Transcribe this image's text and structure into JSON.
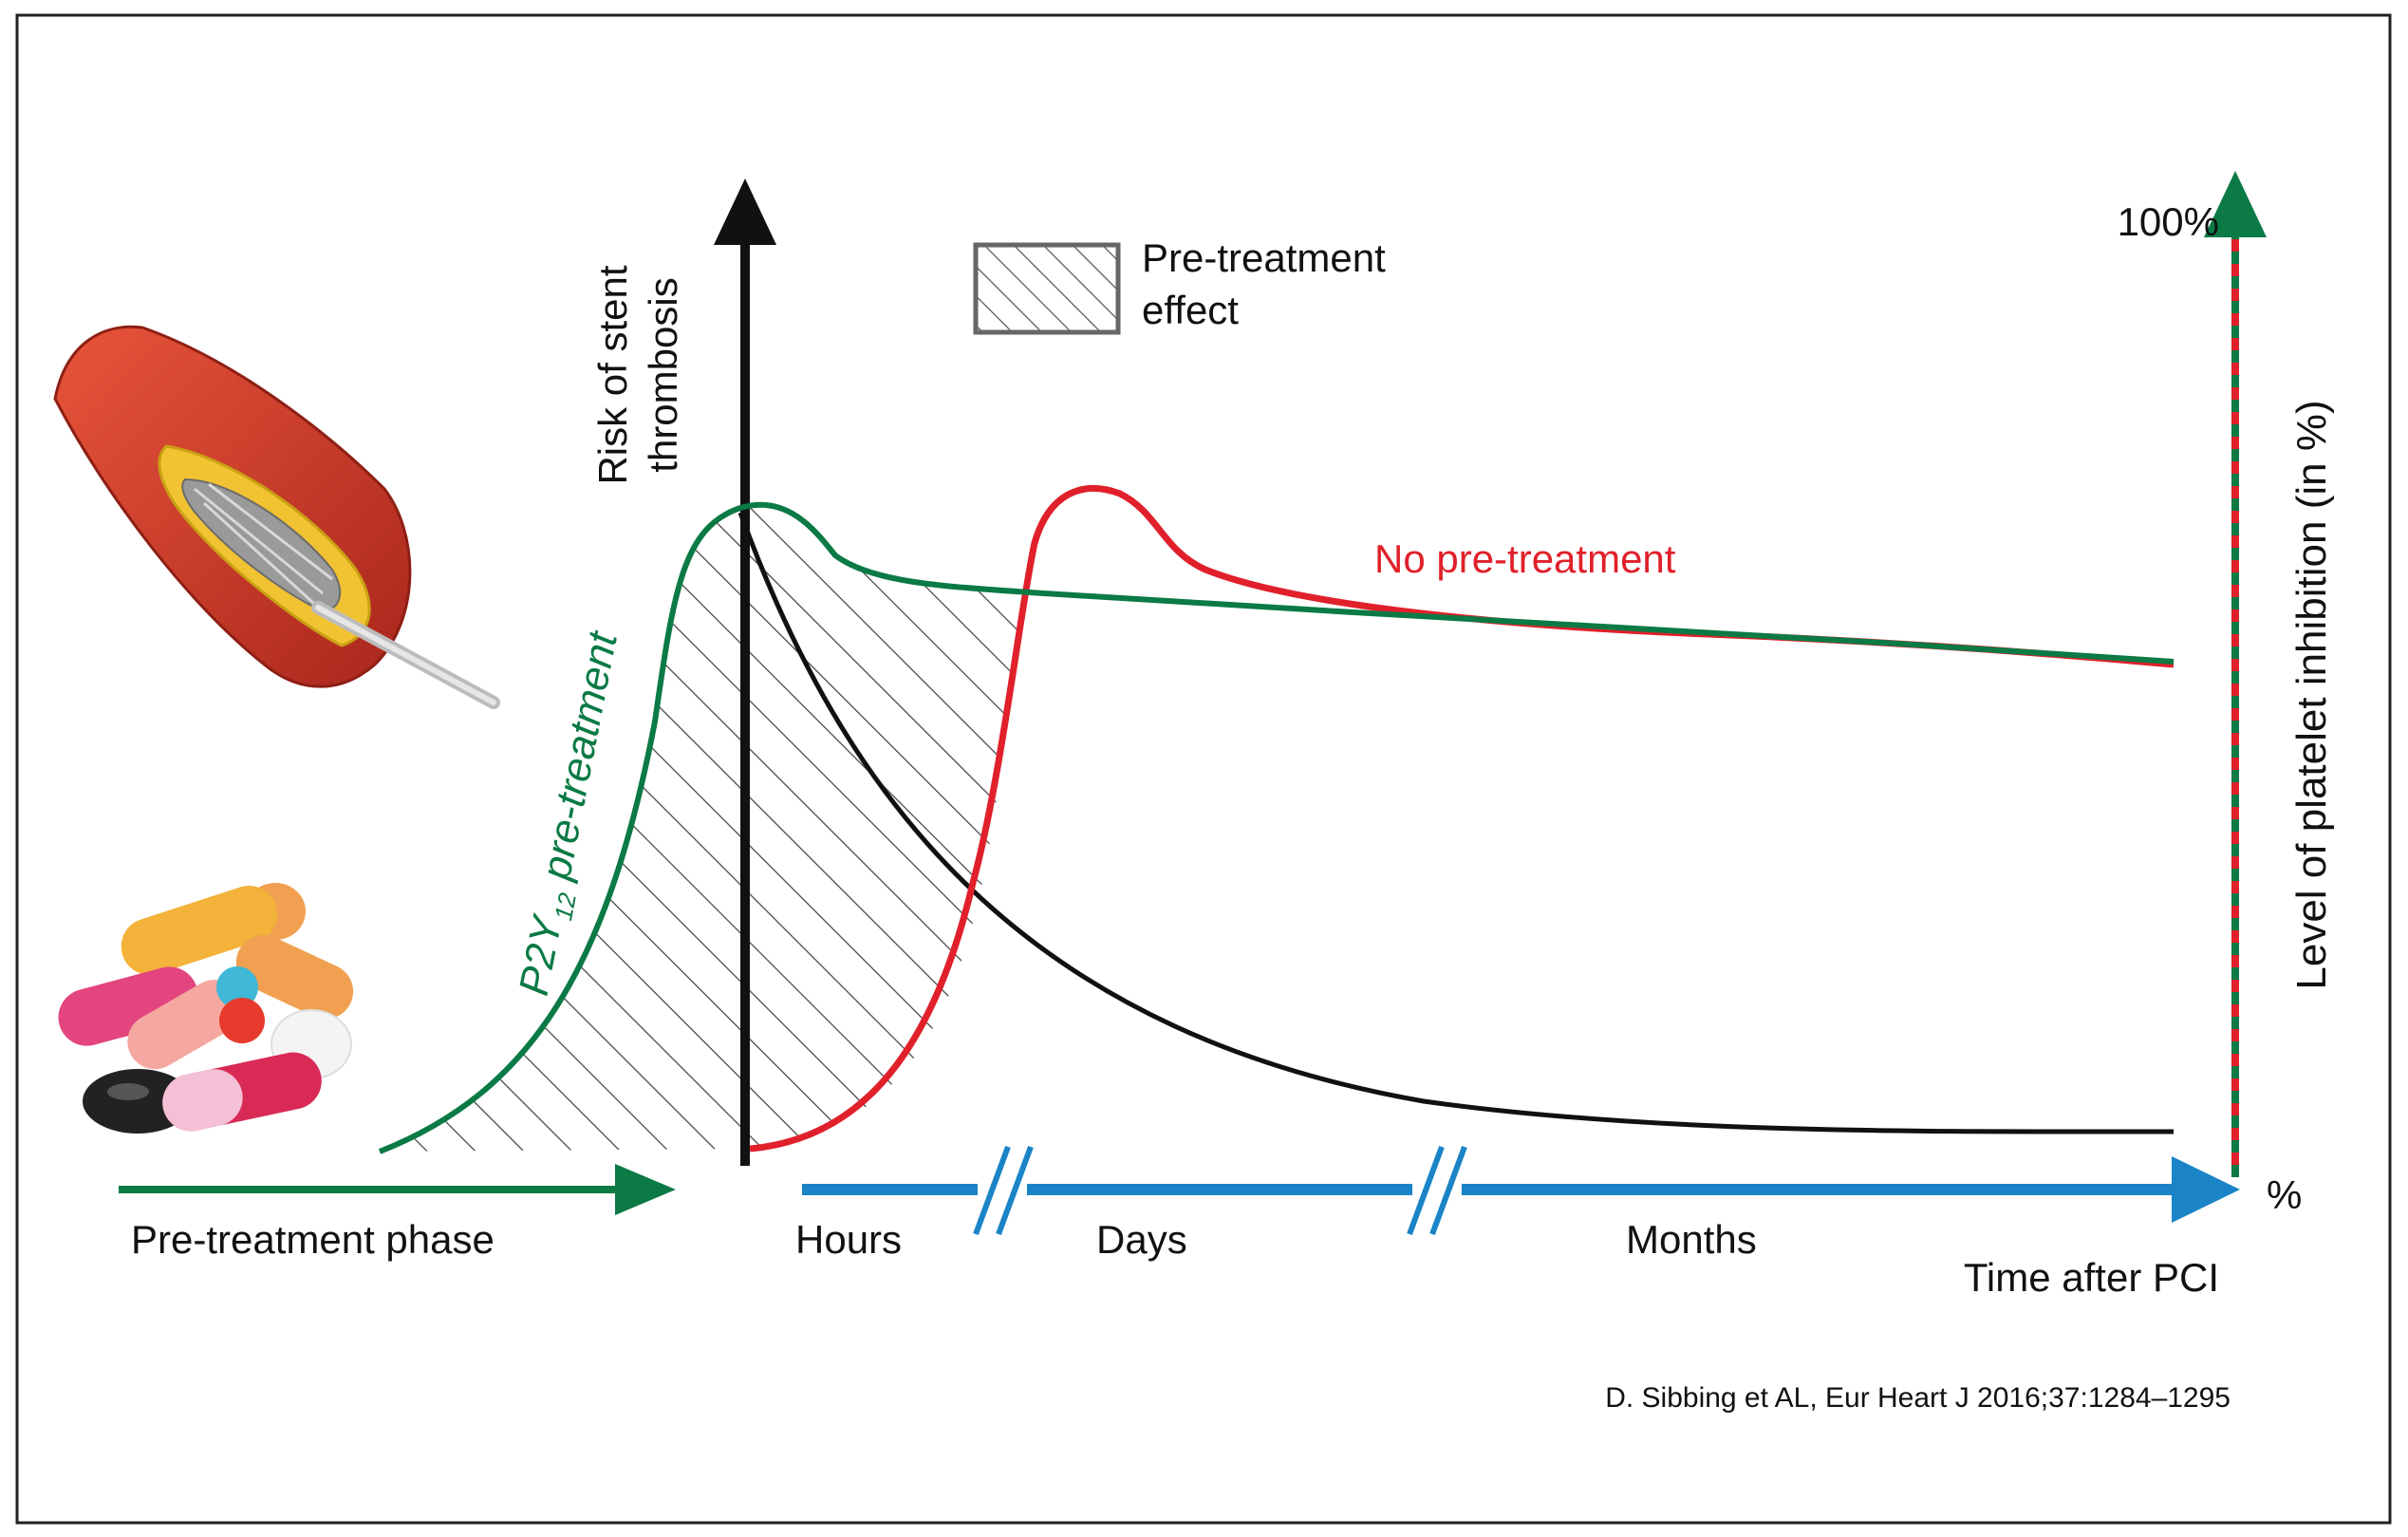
{
  "figure": {
    "y_axis_label_line1": "Risk of stent",
    "y_axis_label_line2": "thrombosis",
    "right_axis_label": "Level of platelet inhibition (in %)",
    "right_axis_top": "100%",
    "right_axis_bottom": "%",
    "legend_line1": "Pre-treatment",
    "legend_line2": "effect",
    "curve_green_prefix": "P2Y",
    "curve_green_subscript": "12",
    "curve_green_suffix": " pre-treatment",
    "curve_red_label": "No pre-treatment",
    "phase_label": "Pre-treatment phase",
    "time_hours": "Hours",
    "time_days": "Days",
    "time_months": "Months",
    "time_axis_label": "Time after PCI",
    "citation": "D. Sibbing et AL, Eur Heart J 2016;37:1284–1295"
  },
  "colors": {
    "green": "#0b7a45",
    "red": "#e0202a",
    "black": "#111111",
    "blue": "#1a84c7",
    "hatch": "#444444"
  },
  "icons": [
    "stent-artery-icon",
    "pills-icon"
  ]
}
